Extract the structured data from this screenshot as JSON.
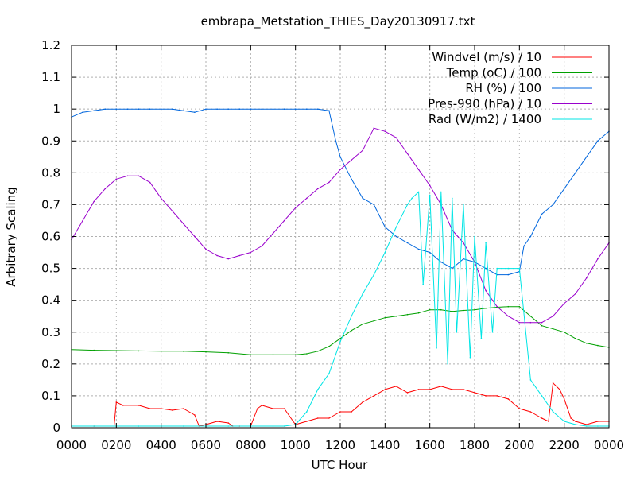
{
  "chart_data": {
    "type": "line",
    "title": "embrapa_Metstation_THIES_Day20130917.txt",
    "xlabel": "UTC Hour",
    "ylabel": "Arbitrary Scaling",
    "xlim": [
      0,
      2400
    ],
    "ylim": [
      0,
      1.2
    ],
    "grid": true,
    "legend_position": "top-right",
    "x_ticks": [
      "0000",
      "0200",
      "0400",
      "0600",
      "0800",
      "1000",
      "1200",
      "1400",
      "1600",
      "1800",
      "2000",
      "2200",
      "0000"
    ],
    "y_ticks": [
      "0",
      "0.1",
      "0.2",
      "0.3",
      "0.4",
      "0.5",
      "0.6",
      "0.7",
      "0.8",
      "0.9",
      "1",
      "1.1",
      "1.2"
    ],
    "series": [
      {
        "name": "Windvel (m/s) / 10",
        "color": "#ff0000",
        "x": [
          0,
          100,
          190,
          200,
          230,
          300,
          350,
          400,
          450,
          500,
          550,
          570,
          600,
          650,
          700,
          720,
          750,
          800,
          830,
          850,
          900,
          950,
          990,
          1000,
          1050,
          1100,
          1150,
          1200,
          1250,
          1300,
          1350,
          1400,
          1450,
          1500,
          1550,
          1600,
          1650,
          1700,
          1750,
          1800,
          1850,
          1900,
          1950,
          2000,
          2050,
          2100,
          2130,
          2150,
          2180,
          2200,
          2230,
          2250,
          2300,
          2350,
          2400
        ],
        "y": [
          0.005,
          0.005,
          0.005,
          0.08,
          0.07,
          0.07,
          0.06,
          0.06,
          0.055,
          0.06,
          0.04,
          0.005,
          0.01,
          0.02,
          0.015,
          0.005,
          0.005,
          0.005,
          0.06,
          0.07,
          0.06,
          0.06,
          0.02,
          0.01,
          0.02,
          0.03,
          0.03,
          0.05,
          0.05,
          0.08,
          0.1,
          0.12,
          0.13,
          0.11,
          0.12,
          0.12,
          0.13,
          0.12,
          0.12,
          0.11,
          0.1,
          0.1,
          0.09,
          0.06,
          0.05,
          0.03,
          0.02,
          0.14,
          0.12,
          0.09,
          0.03,
          0.02,
          0.01,
          0.02,
          0.02
        ]
      },
      {
        "name": "Temp (oC) / 100",
        "color": "#00a000",
        "x": [
          0,
          100,
          200,
          300,
          400,
          500,
          600,
          700,
          800,
          900,
          1000,
          1050,
          1100,
          1150,
          1200,
          1250,
          1300,
          1350,
          1400,
          1450,
          1500,
          1550,
          1600,
          1650,
          1700,
          1750,
          1800,
          1850,
          1900,
          1950,
          2000,
          2050,
          2100,
          2150,
          2200,
          2250,
          2300,
          2350,
          2400
        ],
        "y": [
          0.245,
          0.243,
          0.242,
          0.241,
          0.24,
          0.24,
          0.238,
          0.235,
          0.229,
          0.229,
          0.229,
          0.232,
          0.24,
          0.255,
          0.28,
          0.305,
          0.325,
          0.335,
          0.345,
          0.35,
          0.355,
          0.36,
          0.37,
          0.37,
          0.365,
          0.368,
          0.37,
          0.375,
          0.378,
          0.38,
          0.38,
          0.35,
          0.32,
          0.31,
          0.3,
          0.28,
          0.265,
          0.258,
          0.252
        ]
      },
      {
        "name": "RH (%) / 100",
        "color": "#0066dd",
        "x": [
          0,
          50,
          100,
          150,
          200,
          250,
          300,
          350,
          400,
          450,
          500,
          550,
          600,
          650,
          700,
          750,
          800,
          850,
          900,
          950,
          1000,
          1050,
          1100,
          1150,
          1180,
          1200,
          1250,
          1300,
          1350,
          1400,
          1450,
          1500,
          1550,
          1600,
          1650,
          1700,
          1750,
          1800,
          1850,
          1900,
          1950,
          2000,
          2020,
          2050,
          2100,
          2150,
          2200,
          2250,
          2300,
          2350,
          2400
        ],
        "y": [
          0.975,
          0.99,
          0.995,
          1.0,
          1.0,
          1.0,
          1.0,
          1.0,
          1.0,
          1.0,
          0.995,
          0.99,
          1.0,
          1.0,
          1.0,
          1.0,
          1.0,
          1.0,
          1.0,
          1.0,
          1.0,
          1.0,
          1.0,
          0.995,
          0.9,
          0.85,
          0.78,
          0.72,
          0.7,
          0.63,
          0.6,
          0.58,
          0.56,
          0.55,
          0.52,
          0.5,
          0.53,
          0.52,
          0.5,
          0.48,
          0.48,
          0.49,
          0.57,
          0.6,
          0.67,
          0.7,
          0.75,
          0.8,
          0.85,
          0.9,
          0.93
        ]
      },
      {
        "name": "Pres-990 (hPa) / 10",
        "color": "#9900cc",
        "x": [
          0,
          50,
          100,
          150,
          200,
          250,
          300,
          350,
          400,
          450,
          500,
          550,
          600,
          650,
          700,
          750,
          800,
          850,
          900,
          950,
          1000,
          1050,
          1100,
          1150,
          1200,
          1250,
          1300,
          1350,
          1400,
          1450,
          1500,
          1550,
          1600,
          1650,
          1700,
          1750,
          1800,
          1850,
          1900,
          1950,
          2000,
          2050,
          2100,
          2150,
          2200,
          2250,
          2300,
          2350,
          2400
        ],
        "y": [
          0.59,
          0.65,
          0.71,
          0.75,
          0.78,
          0.79,
          0.79,
          0.77,
          0.72,
          0.68,
          0.64,
          0.6,
          0.56,
          0.54,
          0.53,
          0.54,
          0.55,
          0.57,
          0.61,
          0.65,
          0.69,
          0.72,
          0.75,
          0.77,
          0.81,
          0.84,
          0.87,
          0.94,
          0.93,
          0.91,
          0.86,
          0.81,
          0.76,
          0.7,
          0.62,
          0.58,
          0.52,
          0.43,
          0.38,
          0.35,
          0.33,
          0.33,
          0.33,
          0.35,
          0.39,
          0.42,
          0.47,
          0.53,
          0.58
        ]
      },
      {
        "name": "Rad (W/m2) / 1400",
        "color": "#00e5e5",
        "x": [
          0,
          100,
          200,
          300,
          400,
          500,
          600,
          700,
          800,
          900,
          950,
          1000,
          1050,
          1100,
          1150,
          1200,
          1250,
          1300,
          1350,
          1400,
          1450,
          1500,
          1520,
          1550,
          1570,
          1600,
          1630,
          1650,
          1680,
          1700,
          1720,
          1750,
          1780,
          1800,
          1830,
          1850,
          1880,
          1900,
          1950,
          2000,
          2050,
          2100,
          2150,
          2200,
          2250,
          2300,
          2350,
          2400
        ],
        "y": [
          0.005,
          0.005,
          0.005,
          0.005,
          0.005,
          0.005,
          0.005,
          0.005,
          0.005,
          0.005,
          0.005,
          0.01,
          0.05,
          0.12,
          0.17,
          0.27,
          0.35,
          0.42,
          0.48,
          0.55,
          0.63,
          0.7,
          0.72,
          0.74,
          0.45,
          0.73,
          0.25,
          0.74,
          0.2,
          0.72,
          0.3,
          0.7,
          0.22,
          0.6,
          0.28,
          0.58,
          0.3,
          0.5,
          0.5,
          0.5,
          0.15,
          0.1,
          0.05,
          0.02,
          0.01,
          0.005,
          0.005,
          0.005
        ]
      }
    ]
  }
}
